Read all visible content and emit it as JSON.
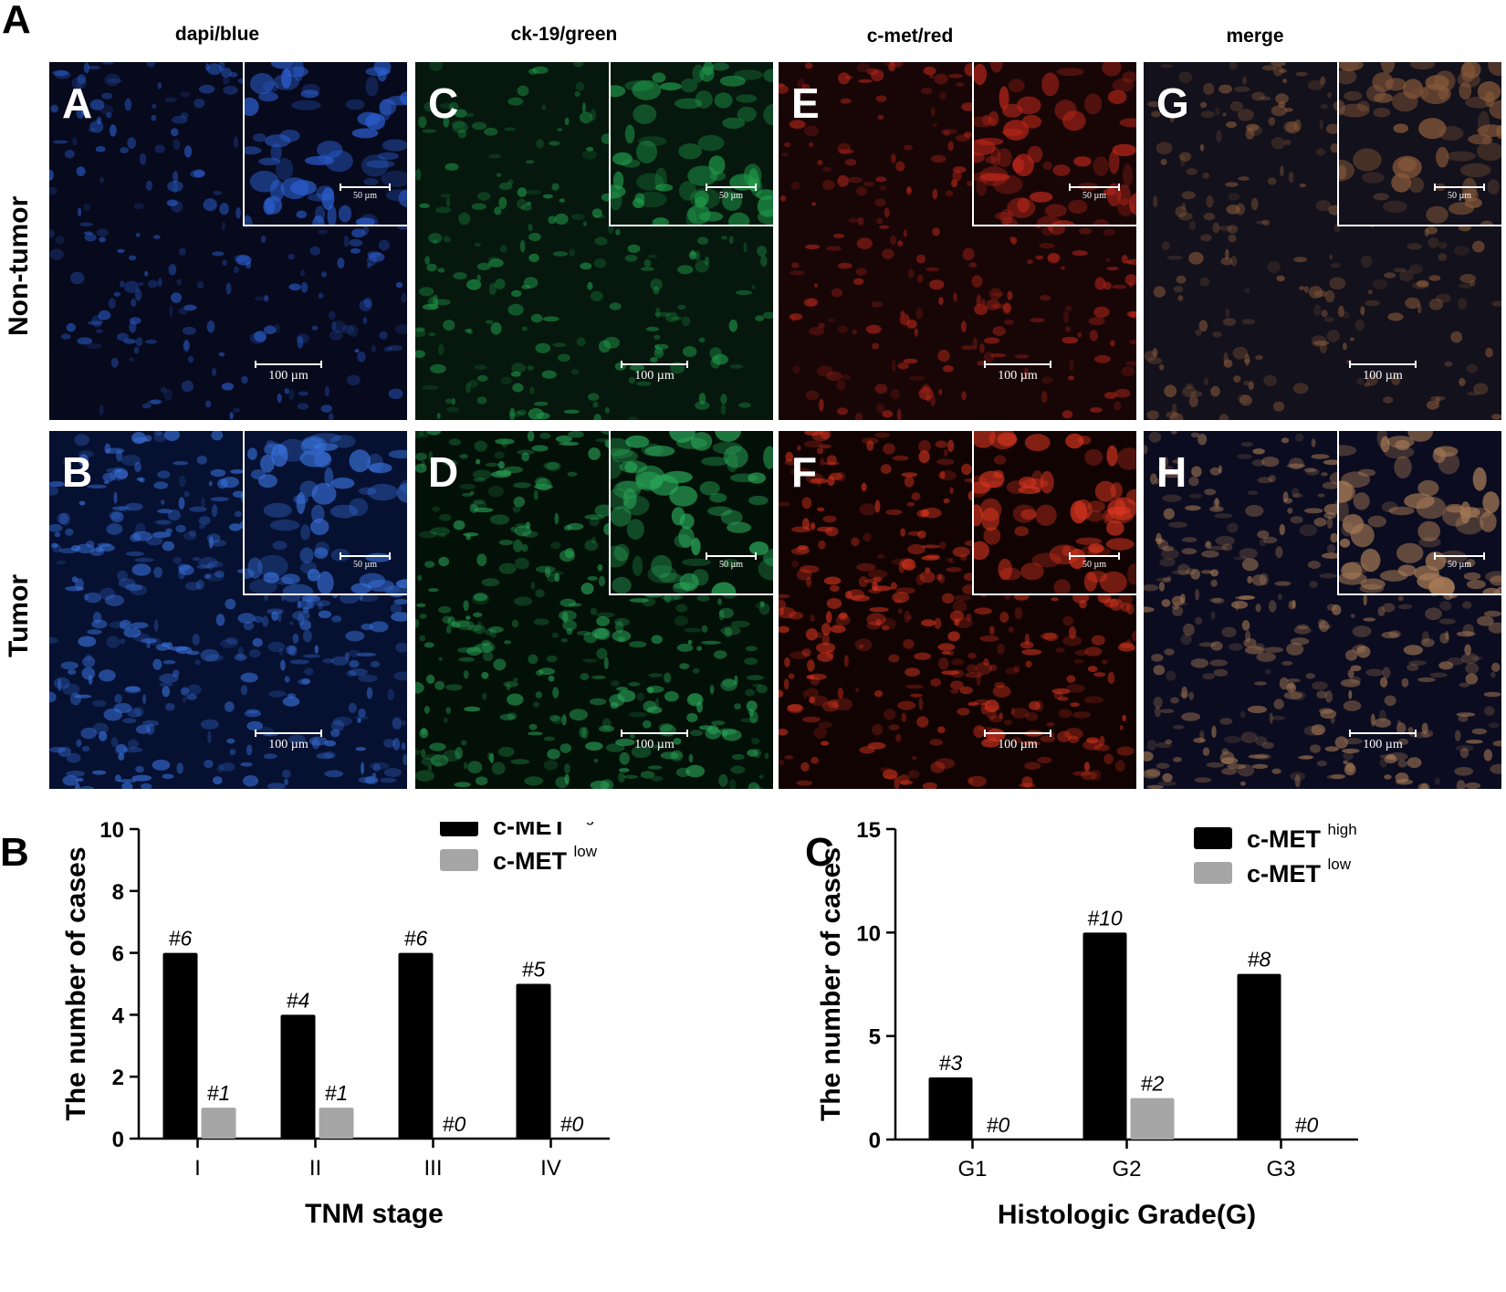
{
  "figure": {
    "panel_a_letter": "A",
    "panel_b_letter": "B",
    "panel_c_letter": "C",
    "columns": [
      "dapi/blue",
      "ck-19/green",
      "c-met/red",
      "merge"
    ],
    "rows": [
      "Non-tumor",
      "Tumor"
    ],
    "tiles": [
      {
        "letter": "A",
        "color": "#2b5fd0",
        "bg": "#07091c",
        "main_scale": "100 µm",
        "inset_scale": "50 µm"
      },
      {
        "letter": "C",
        "color": "#1f9a4a",
        "bg": "#06170d",
        "main_scale": "100 µm",
        "inset_scale": "50 µm"
      },
      {
        "letter": "E",
        "color": "#b9261a",
        "bg": "#180607",
        "main_scale": "100 µm",
        "inset_scale": "50 µm"
      },
      {
        "letter": "G",
        "color": "#8a5a3a",
        "bg": "#12111c",
        "main_scale": "100 µm",
        "inset_scale": "50 µm"
      },
      {
        "letter": "B",
        "color": "#3a74e0",
        "bg": "#061030",
        "main_scale": "100 µm",
        "inset_scale": "50 µm"
      },
      {
        "letter": "D",
        "color": "#2aa85a",
        "bg": "#031007",
        "main_scale": "100 µm",
        "inset_scale": "50 µm"
      },
      {
        "letter": "F",
        "color": "#d8351f",
        "bg": "#120303",
        "main_scale": "100 µm",
        "inset_scale": "50 µm"
      },
      {
        "letter": "H",
        "color": "#a67a55",
        "bg": "#0b0c20",
        "main_scale": "100 µm",
        "inset_scale": "50 µm"
      }
    ]
  },
  "chart_data": [
    {
      "type": "bar",
      "title": "",
      "xlabel": "TNM stage",
      "ylabel": "The number of cases",
      "categories": [
        "I",
        "II",
        "III",
        "IV"
      ],
      "ylim": [
        0,
        10
      ],
      "yticks": [
        0,
        2,
        4,
        6,
        8,
        10
      ],
      "legend_position": "top-right",
      "series": [
        {
          "name": "c-MET",
          "sup": "high",
          "color": "#000000",
          "values": [
            6,
            4,
            6,
            5
          ],
          "labels": [
            "#6",
            "#4",
            "#6",
            "#5"
          ]
        },
        {
          "name": "c-MET",
          "sup": "low",
          "color": "#a6a6a6",
          "values": [
            1,
            1,
            0,
            0
          ],
          "labels": [
            "#1",
            "#1",
            "#0",
            "#0"
          ]
        }
      ]
    },
    {
      "type": "bar",
      "title": "",
      "xlabel": "Histologic Grade(G)",
      "ylabel": "The number of cases",
      "categories": [
        "G1",
        "G2",
        "G3"
      ],
      "ylim": [
        0,
        15
      ],
      "yticks": [
        0,
        5,
        10,
        15
      ],
      "legend_position": "top-right",
      "series": [
        {
          "name": "c-MET",
          "sup": "high",
          "color": "#000000",
          "values": [
            3,
            10,
            8
          ],
          "labels": [
            "#3",
            "#10",
            "#8"
          ]
        },
        {
          "name": "c-MET",
          "sup": "low",
          "color": "#a6a6a6",
          "values": [
            0,
            2,
            0
          ],
          "labels": [
            "#0",
            "#2",
            "#0"
          ]
        }
      ]
    }
  ]
}
